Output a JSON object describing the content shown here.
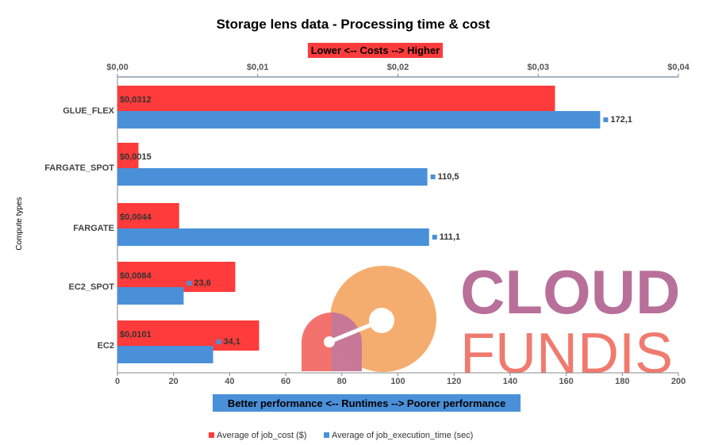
{
  "chart_data": {
    "type": "bar",
    "orientation": "horizontal",
    "title": "Storage lens data - Processing time & cost",
    "ylabel": "Compute types",
    "categories": [
      "GLUE_FLEX",
      "FARGATE_SPOT",
      "FARGATE",
      "EC2_SPOT",
      "EC2"
    ],
    "series": [
      {
        "name": "Average of job_cost ($)",
        "axis": "top",
        "color": "#ff3b3b",
        "values": [
          0.0312,
          0.0015,
          0.0044,
          0.0084,
          0.0101
        ],
        "labels": [
          "$0,0312",
          "$0,0015",
          "$0,0044",
          "$0,0084",
          "$0,0101"
        ]
      },
      {
        "name": "Average of job_execution_time (sec)",
        "axis": "bottom",
        "color": "#4a90d9",
        "values": [
          172.1,
          110.5,
          111.1,
          23.6,
          34.1
        ],
        "labels": [
          "172,1",
          "110,5",
          "111,1",
          "23,6",
          "34,1"
        ]
      }
    ],
    "top_axis": {
      "range": [
        0,
        0.04
      ],
      "ticks": [
        0,
        0.01,
        0.02,
        0.03,
        0.04
      ],
      "tick_labels": [
        "$0,00",
        "$0,01",
        "$0,02",
        "$0,03",
        "$0,04"
      ],
      "banner": "Lower <-- Costs --> Higher",
      "banner_color": "#ff3b3b"
    },
    "bottom_axis": {
      "range": [
        0,
        200
      ],
      "ticks": [
        0,
        20,
        40,
        60,
        80,
        100,
        120,
        140,
        160,
        180,
        200
      ],
      "tick_labels": [
        "0",
        "20",
        "40",
        "60",
        "80",
        "100",
        "120",
        "140",
        "160",
        "180",
        "200"
      ],
      "banner": "Better performance <-- Runtimes --> Poorer performance",
      "banner_color": "#4a90d9"
    },
    "grid": false,
    "legend_position": "bottom"
  },
  "watermark": {
    "line1": "CLOUD",
    "line2": "FUNDIS",
    "line1_color": "#b8709a",
    "line2_color": "#f07a6e"
  }
}
